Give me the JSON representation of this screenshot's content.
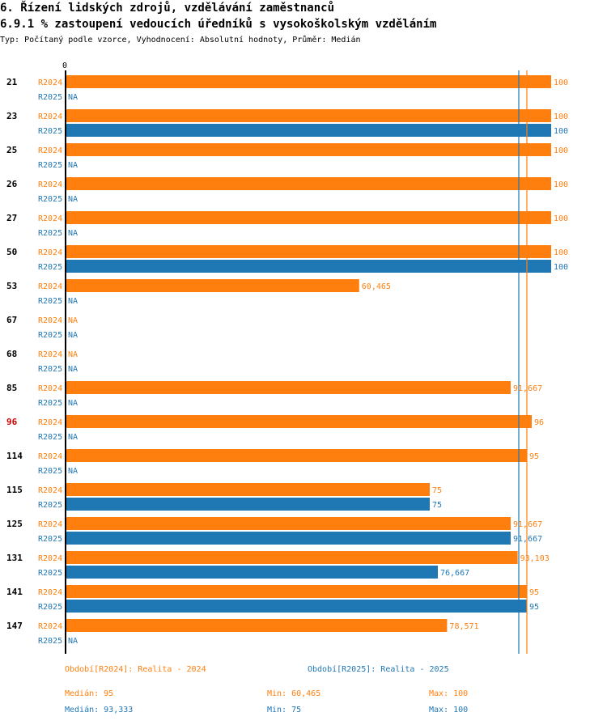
{
  "header": {
    "title": "6. Řízení lidských zdrojů, vzdělávání zaměstnanců",
    "subtitle": "6.9.1 % zastoupení vedoucích úředníků s vysokoškolským vzděláním",
    "type_line": "Typ: Počítaný podle vzorce, Vyhodnocení: Absolutní hodnoty, Průměr: Medián"
  },
  "colors": {
    "r2024": "#ff7f0e",
    "r2025": "#1f77b4",
    "highlight_group": "#cc0000",
    "axis": "#000000"
  },
  "chart_data": {
    "type": "bar",
    "orientation": "horizontal",
    "axis_zero_label": "0",
    "xlim": [
      0,
      100
    ],
    "categories": [
      "21",
      "23",
      "25",
      "26",
      "27",
      "50",
      "53",
      "67",
      "68",
      "85",
      "96",
      "114",
      "115",
      "125",
      "131",
      "141",
      "147"
    ],
    "highlight_category": "96",
    "series": [
      {
        "name": "R2024",
        "values": [
          100,
          100,
          100,
          100,
          100,
          100,
          60.465,
          null,
          null,
          91.667,
          96,
          95,
          75,
          91.667,
          93.103,
          95,
          78.571
        ],
        "labels": [
          "100",
          "100",
          "100",
          "100",
          "100",
          "100",
          "60,465",
          "NA",
          "NA",
          "91,667",
          "96",
          "95",
          "75",
          "91,667",
          "93,103",
          "95",
          "78,571"
        ]
      },
      {
        "name": "R2025",
        "values": [
          null,
          100,
          null,
          null,
          null,
          100,
          null,
          null,
          null,
          null,
          null,
          null,
          75,
          91.667,
          76.667,
          95,
          null
        ],
        "labels": [
          "NA",
          "100",
          "NA",
          "NA",
          "NA",
          "100",
          "NA",
          "NA",
          "NA",
          "NA",
          "NA",
          "NA",
          "75",
          "91,667",
          "76,667",
          "95",
          "NA"
        ]
      }
    ],
    "reference_lines": [
      {
        "series": "R2024",
        "statistic": "median",
        "value": 95
      },
      {
        "series": "R2025",
        "statistic": "median",
        "value": 93.333
      }
    ]
  },
  "legend": {
    "r2024": "Období[R2024]: Realita - 2024",
    "r2025": "Období[R2025]: Realita - 2025"
  },
  "stats": {
    "r2024": {
      "median": "Medián: 95",
      "min": "Min: 60,465",
      "max": "Max: 100"
    },
    "r2025": {
      "median": "Medián: 93,333",
      "min": "Min: 75",
      "max": "Max: 100"
    }
  }
}
